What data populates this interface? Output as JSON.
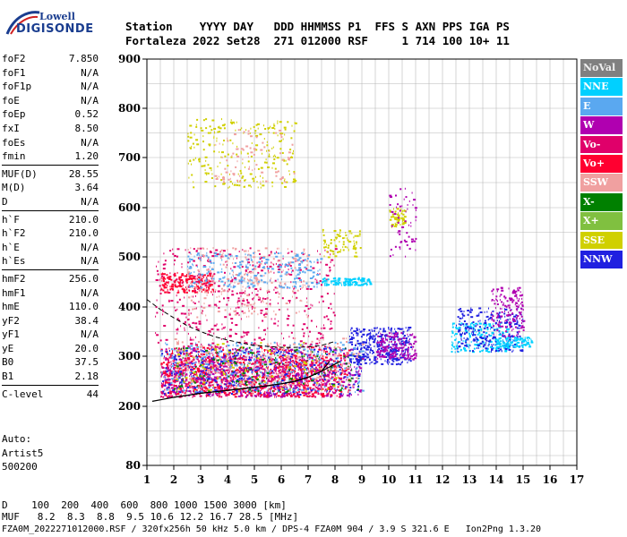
{
  "logo": {
    "top": "Lowell",
    "bottom": "DIGISONDE"
  },
  "header": {
    "line1": "Station    YYYY DAY   DDD HHMMSS P1  FFS S AXN PPS IGA PS",
    "line2": "Fortaleza 2022 Set28  271 012000 RSF     1 714 100 10+ 11"
  },
  "params": {
    "group1": [
      {
        "name": "foF2",
        "value": "7.850"
      },
      {
        "name": "foF1",
        "value": "N/A"
      },
      {
        "name": "foF1p",
        "value": "N/A"
      },
      {
        "name": "foE",
        "value": "N/A"
      },
      {
        "name": "foEp",
        "value": "0.52"
      },
      {
        "name": "fxI",
        "value": "8.50"
      },
      {
        "name": "foEs",
        "value": "N/A"
      },
      {
        "name": "fmin",
        "value": "1.20"
      }
    ],
    "group2": [
      {
        "name": "MUF(D)",
        "value": "28.55"
      },
      {
        "name": "M(D)",
        "value": "3.64"
      },
      {
        "name": "D",
        "value": "N/A"
      }
    ],
    "group3": [
      {
        "name": "h`F",
        "value": "210.0"
      },
      {
        "name": "h`F2",
        "value": "210.0"
      },
      {
        "name": "h`E",
        "value": "N/A"
      },
      {
        "name": "h`Es",
        "value": "N/A"
      }
    ],
    "group4": [
      {
        "name": "hmF2",
        "value": "256.0"
      },
      {
        "name": "hmF1",
        "value": "N/A"
      },
      {
        "name": "hmE",
        "value": "110.0"
      },
      {
        "name": "yF2",
        "value": "38.4"
      },
      {
        "name": "yF1",
        "value": "N/A"
      },
      {
        "name": "yE",
        "value": "20.0"
      },
      {
        "name": "B0",
        "value": "37.5"
      },
      {
        "name": "B1",
        "value": "2.18"
      }
    ],
    "group5": [
      {
        "name": "C-level",
        "value": "44"
      }
    ]
  },
  "auto": {
    "line1": "Auto:",
    "line2": "Artist5",
    "line3": "500200"
  },
  "legend": [
    {
      "label": "NoVal",
      "color": "#808080"
    },
    {
      "label": "NNE",
      "color": "#00d0ff"
    },
    {
      "label": "E",
      "color": "#5aa8f0"
    },
    {
      "label": "W",
      "color": "#b000b0"
    },
    {
      "label": "Vo-",
      "color": "#e0006a"
    },
    {
      "label": "Vo+",
      "color": "#ff0030"
    },
    {
      "label": "SSW",
      "color": "#f0a0a0"
    },
    {
      "label": "X-",
      "color": "#008000"
    },
    {
      "label": "X+",
      "color": "#80c040"
    },
    {
      "label": "SSE",
      "color": "#d0d000"
    },
    {
      "label": "NNW",
      "color": "#2020e0"
    }
  ],
  "footer": {
    "d_line": "D    100  200  400  600  800 1000 1500 3000 [km]",
    "muf_line": "MUF   8.2  8.3  8.8  9.5 10.6 12.2 16.7 28.5 [MHz]",
    "file_line": "FZA0M_2022271012000.RSF / 320fx256h 50 kHz 5.0 km / DPS-4 FZA0M 904 / 3.9 S 321.6 E   Ion2Png 1.3.20"
  },
  "chart_data": {
    "type": "scatter",
    "x_ticks": [
      "1",
      "2",
      "3",
      "4",
      "5",
      "6",
      "7",
      "8",
      "9",
      "10",
      "11",
      "12",
      "13",
      "14",
      "15",
      "16",
      "17"
    ],
    "y_ticks": [
      "80",
      "200",
      "300",
      "400",
      "500",
      "600",
      "700",
      "800",
      "900"
    ],
    "xlim": [
      1,
      17
    ],
    "y_axis": "virtual height (quasi-log scale)",
    "grid": true,
    "legend_position": "right",
    "series": [
      {
        "kind": "O-trace (scaled)",
        "x": [
          1.2,
          1.6,
          2.0,
          2.5,
          3.0,
          3.5,
          4.0,
          4.5,
          5.0,
          5.5,
          6.0,
          6.5,
          7.0,
          7.5,
          7.8
        ],
        "y": [
          210,
          214,
          218,
          222,
          226,
          229,
          232,
          235,
          238,
          241,
          245,
          250,
          258,
          270,
          290
        ]
      },
      {
        "kind": "X-trace (scaled)",
        "x": [
          2.0,
          2.5,
          3.0,
          3.5,
          4.0,
          4.5,
          5.0,
          5.5,
          6.0,
          6.5,
          7.0,
          7.5,
          8.2
        ],
        "y": [
          218,
          222,
          226,
          229,
          232,
          235,
          238,
          241,
          245,
          250,
          258,
          270,
          290
        ]
      },
      {
        "kind": "profile (dashed)",
        "x": [
          1.0,
          1.5,
          2.0,
          2.5,
          3.0,
          3.5,
          4.0,
          4.5,
          5.0,
          5.5,
          6.0,
          6.5,
          7.0,
          7.5,
          8.0
        ],
        "y": [
          415,
          395,
          378,
          362,
          350,
          340,
          333,
          327,
          322,
          320,
          318,
          318,
          319,
          322,
          330
        ]
      }
    ],
    "clusters": [
      {
        "color": "#e0006a",
        "x": [
          1.5,
          8
        ],
        "y": [
          220,
          300
        ],
        "n": 900
      },
      {
        "color": "#ff0030",
        "x": [
          1.5,
          8.5
        ],
        "y": [
          220,
          320
        ],
        "n": 700
      },
      {
        "color": "#b000b0",
        "x": [
          1.5,
          9
        ],
        "y": [
          220,
          320
        ],
        "n": 500
      },
      {
        "color": "#2020e0",
        "x": [
          1.5,
          9
        ],
        "y": [
          225,
          320
        ],
        "n": 350
      },
      {
        "color": "#5aa8f0",
        "x": [
          1.5,
          9
        ],
        "y": [
          230,
          330
        ],
        "n": 300
      },
      {
        "color": "#008000",
        "x": [
          2,
          9
        ],
        "y": [
          230,
          320
        ],
        "n": 150
      },
      {
        "color": "#d0d000",
        "x": [
          2,
          8
        ],
        "y": [
          230,
          330
        ],
        "n": 100
      },
      {
        "color": "#f0a0a0",
        "x": [
          2,
          9
        ],
        "y": [
          240,
          340
        ],
        "n": 200
      },
      {
        "color": "#e0006a",
        "x": [
          1.3,
          8
        ],
        "y": [
          320,
          520
        ],
        "n": 500
      },
      {
        "color": "#ff0030",
        "x": [
          1.5,
          3.5
        ],
        "y": [
          430,
          470
        ],
        "n": 200
      },
      {
        "color": "#f0a0a0",
        "x": [
          2.5,
          7
        ],
        "y": [
          380,
          520
        ],
        "n": 250
      },
      {
        "color": "#5aa8f0",
        "x": [
          2.5,
          7.5
        ],
        "y": [
          440,
          510
        ],
        "n": 250
      },
      {
        "color": "#00d0ff",
        "x": [
          7.5,
          9.3
        ],
        "y": [
          445,
          460
        ],
        "n": 120
      },
      {
        "color": "#d0d000",
        "x": [
          2.5,
          6.5
        ],
        "y": [
          640,
          780
        ],
        "n": 250
      },
      {
        "color": "#f0a0a0",
        "x": [
          3.5,
          6.5
        ],
        "y": [
          650,
          760
        ],
        "n": 80
      },
      {
        "color": "#d0d000",
        "x": [
          7.5,
          9.0
        ],
        "y": [
          500,
          560
        ],
        "n": 80
      },
      {
        "color": "#2020e0",
        "x": [
          8.5,
          10.8
        ],
        "y": [
          285,
          360
        ],
        "n": 350
      },
      {
        "color": "#b000b0",
        "x": [
          9.5,
          11.0
        ],
        "y": [
          295,
          350
        ],
        "n": 150
      },
      {
        "color": "#00d0ff",
        "x": [
          12.3,
          14.5
        ],
        "y": [
          310,
          370
        ],
        "n": 200
      },
      {
        "color": "#2020e0",
        "x": [
          12.5,
          15.0
        ],
        "y": [
          310,
          400
        ],
        "n": 250
      },
      {
        "color": "#b000b0",
        "x": [
          13.8,
          15.0
        ],
        "y": [
          340,
          440
        ],
        "n": 150
      },
      {
        "color": "#00d0ff",
        "x": [
          14.0,
          15.3
        ],
        "y": [
          320,
          340
        ],
        "n": 100
      },
      {
        "color": "#d0d000",
        "x": [
          10.0,
          10.6
        ],
        "y": [
          560,
          600
        ],
        "n": 50
      },
      {
        "color": "#b000b0",
        "x": [
          10.0,
          11.0
        ],
        "y": [
          500,
          640
        ],
        "n": 60
      }
    ]
  }
}
